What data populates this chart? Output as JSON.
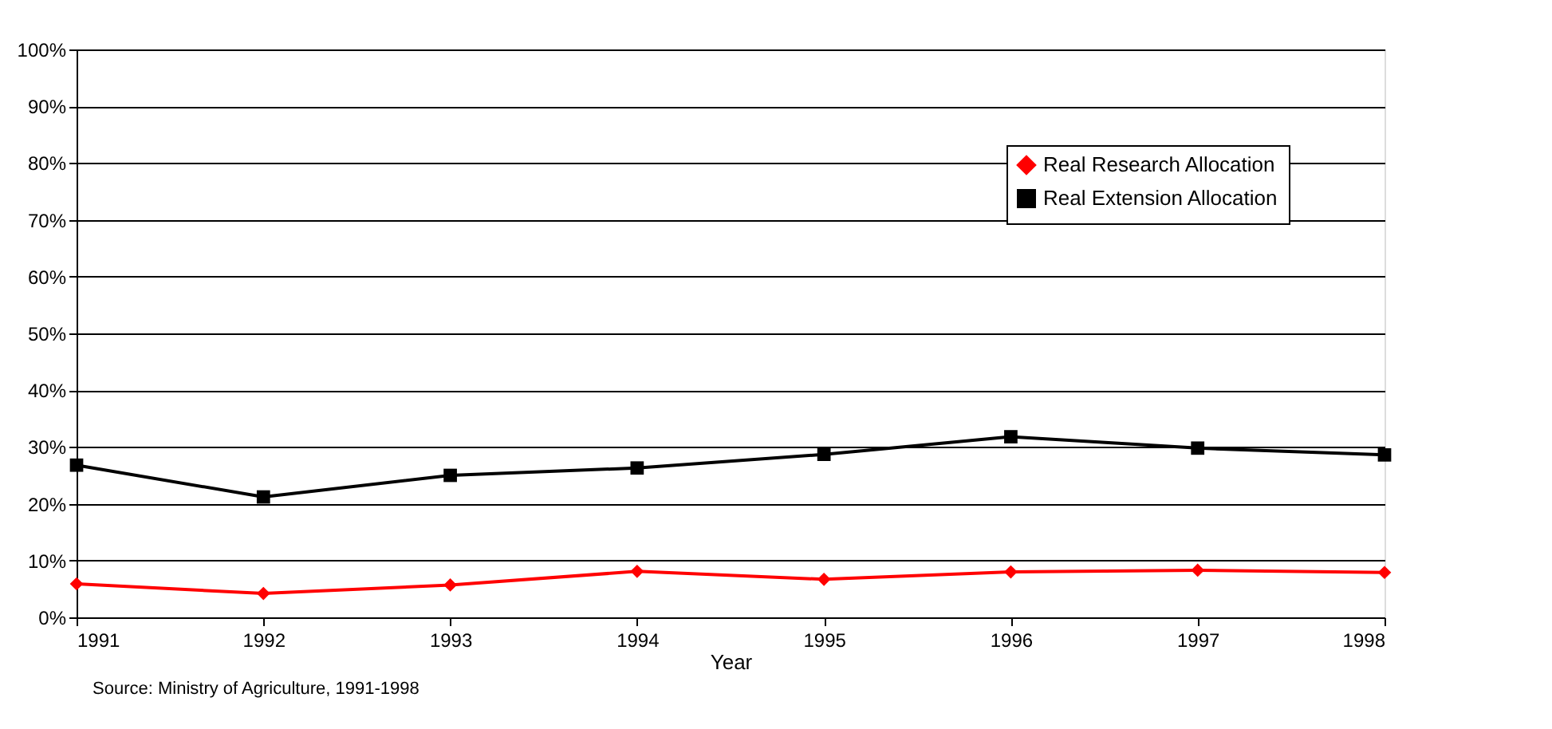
{
  "chart_data": {
    "type": "line",
    "xlabel": "Year",
    "x": [
      1991,
      1992,
      1993,
      1994,
      1995,
      1996,
      1997,
      1998
    ],
    "series": [
      {
        "name": "Real Research Allocation",
        "color": "#ff0000",
        "marker": "diamond",
        "values": [
          5.9,
          4.2,
          5.7,
          8.1,
          6.7,
          8.0,
          8.3,
          7.9
        ]
      },
      {
        "name": "Real Extension Allocation",
        "color": "#000000",
        "marker": "square",
        "values": [
          26.8,
          21.2,
          25.0,
          26.3,
          28.7,
          31.8,
          29.8,
          28.6
        ]
      }
    ],
    "xlim": [
      1991,
      1998
    ],
    "xticks": [
      1991,
      1992,
      1993,
      1994,
      1995,
      1996,
      1997,
      1998
    ],
    "ylim": [
      0,
      100
    ],
    "yticks": [
      {
        "value": 0,
        "label": "0%"
      },
      {
        "value": 10,
        "label": "10%"
      },
      {
        "value": 20,
        "label": "20%"
      },
      {
        "value": 30,
        "label": "30%"
      },
      {
        "value": 40,
        "label": "40%"
      },
      {
        "value": 50,
        "label": "50%"
      },
      {
        "value": 60,
        "label": "60%"
      },
      {
        "value": 70,
        "label": "70%"
      },
      {
        "value": 80,
        "label": "80%"
      },
      {
        "value": 90,
        "label": "90%"
      },
      {
        "value": 100,
        "label": "100%"
      }
    ],
    "grid": "y",
    "legend": "top right",
    "line_style": "solid",
    "annotations": [
      "Source:  Ministry of Agriculture, 1991-1998"
    ]
  }
}
